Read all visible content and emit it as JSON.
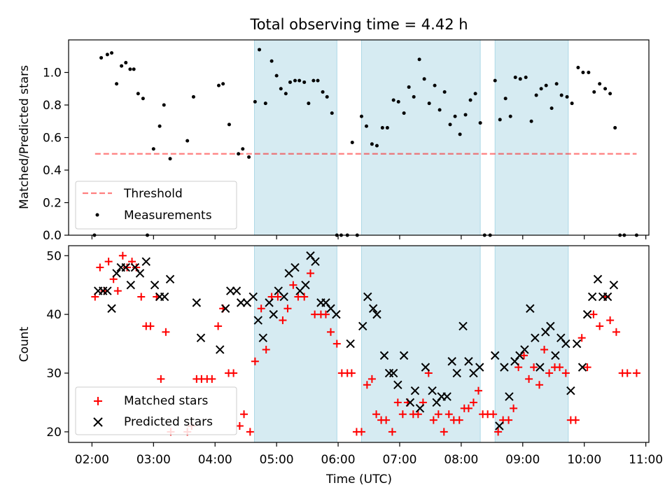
{
  "title": "Total observing time = 4.42 h",
  "colors": {
    "shade": "#add8e6",
    "threshold": "#ff0000",
    "matched": "#ff0000",
    "predicted": "#000000",
    "measure": "#000000"
  },
  "chart_data": [
    {
      "type": "scatter",
      "panel": "top",
      "ylabel": "Matched/Predicted stars",
      "xlim": [
        1.62,
        11.05
      ],
      "ylim": [
        0.0,
        1.2
      ],
      "yticks": [
        0.0,
        0.2,
        0.4,
        0.6,
        0.8,
        1.0
      ],
      "ytick_labels": [
        "0.0",
        "0.2",
        "0.4",
        "0.6",
        "0.8",
        "1.0"
      ],
      "shaded_intervals": [
        [
          4.64,
          5.98
        ],
        [
          6.38,
          8.31
        ],
        [
          8.55,
          9.74
        ]
      ],
      "threshold": {
        "name": "Threshold",
        "value": 0.5,
        "x_range": [
          2.05,
          10.85
        ]
      },
      "legend": {
        "location": "lower left",
        "entries": [
          "Threshold",
          "Measurements"
        ]
      },
      "series": [
        {
          "name": "Measurements",
          "x": [
            2.04,
            2.15,
            2.25,
            2.32,
            2.4,
            2.48,
            2.55,
            2.62,
            2.68,
            2.75,
            2.83,
            2.9,
            3.0,
            3.1,
            3.17,
            3.27,
            3.55,
            3.65,
            4.06,
            4.13,
            4.23,
            4.38,
            4.45,
            4.55,
            4.65,
            4.72,
            4.82,
            4.92,
            5.0,
            5.07,
            5.15,
            5.22,
            5.3,
            5.37,
            5.45,
            5.52,
            5.6,
            5.67,
            5.75,
            5.82,
            5.9,
            5.98,
            6.05,
            6.15,
            6.23,
            6.31,
            6.38,
            6.46,
            6.55,
            6.63,
            6.72,
            6.8,
            6.9,
            6.98,
            7.07,
            7.15,
            7.23,
            7.32,
            7.4,
            7.48,
            7.57,
            7.65,
            7.73,
            7.82,
            7.9,
            7.98,
            8.07,
            8.15,
            8.23,
            8.31,
            8.38,
            8.47,
            8.55,
            8.63,
            8.72,
            8.8,
            8.88,
            8.96,
            9.05,
            9.14,
            9.22,
            9.3,
            9.38,
            9.47,
            9.55,
            9.63,
            9.72,
            9.8,
            9.9,
            9.98,
            10.07,
            10.16,
            10.25,
            10.34,
            10.42,
            10.5,
            10.58,
            10.65,
            10.85
          ],
          "y": [
            0.0,
            1.09,
            1.11,
            1.12,
            0.93,
            1.04,
            1.06,
            1.02,
            1.02,
            0.87,
            0.84,
            0.0,
            0.53,
            0.67,
            0.8,
            0.47,
            0.58,
            0.85,
            0.92,
            0.93,
            0.68,
            0.5,
            0.53,
            0.48,
            0.82,
            1.14,
            0.81,
            1.07,
            0.98,
            0.9,
            0.87,
            0.94,
            0.95,
            0.95,
            0.94,
            0.81,
            0.95,
            0.95,
            0.88,
            0.85,
            0.75,
            0.0,
            0.0,
            0.0,
            0.57,
            0.0,
            0.73,
            0.67,
            0.56,
            0.55,
            0.66,
            0.66,
            0.83,
            0.82,
            0.75,
            0.91,
            0.85,
            1.08,
            0.96,
            0.81,
            0.92,
            0.77,
            0.88,
            0.68,
            0.73,
            0.62,
            0.74,
            0.83,
            0.87,
            0.69,
            0.0,
            0.0,
            0.95,
            0.71,
            0.84,
            0.73,
            0.97,
            0.96,
            0.97,
            0.7,
            0.86,
            0.9,
            0.92,
            0.78,
            0.93,
            0.86,
            0.85,
            0.81,
            1.03,
            1.0,
            1.0,
            0.88,
            0.93,
            0.9,
            0.87,
            0.66,
            0.0,
            0.0,
            0.0
          ]
        }
      ]
    },
    {
      "type": "scatter",
      "panel": "bottom",
      "xlabel": "Time (UTC)",
      "ylabel": "Count",
      "xlim": [
        1.62,
        11.05
      ],
      "ylim": [
        18.2,
        51.7
      ],
      "xticks": [
        2,
        3,
        4,
        5,
        6,
        7,
        8,
        9,
        10,
        11
      ],
      "xtick_labels": [
        "02:00",
        "03:00",
        "04:00",
        "05:00",
        "06:00",
        "07:00",
        "08:00",
        "09:00",
        "10:00",
        "11:00"
      ],
      "yticks": [
        20,
        30,
        40,
        50
      ],
      "ytick_labels": [
        "20",
        "30",
        "40",
        "50"
      ],
      "shaded_intervals": [
        [
          4.64,
          5.98
        ],
        [
          6.38,
          8.31
        ],
        [
          8.55,
          9.74
        ]
      ],
      "legend": {
        "location": "lower left",
        "entries": [
          "Matched stars",
          "Predicted stars"
        ]
      },
      "series": [
        {
          "name": "Matched stars",
          "marker": "plus",
          "x": [
            2.05,
            2.13,
            2.2,
            2.27,
            2.35,
            2.42,
            2.5,
            2.57,
            2.65,
            2.72,
            2.8,
            2.88,
            2.95,
            3.05,
            3.12,
            3.2,
            3.28,
            3.55,
            3.62,
            3.7,
            3.78,
            3.87,
            3.95,
            4.05,
            4.13,
            4.22,
            4.3,
            4.4,
            4.47,
            4.57,
            4.65,
            4.75,
            4.83,
            4.92,
            5.02,
            5.1,
            5.18,
            5.27,
            5.35,
            5.45,
            5.55,
            5.62,
            5.72,
            5.8,
            5.88,
            5.98,
            6.06,
            6.15,
            6.22,
            6.3,
            6.38,
            6.47,
            6.55,
            6.62,
            6.7,
            6.78,
            6.88,
            6.97,
            7.05,
            7.13,
            7.22,
            7.3,
            7.38,
            7.47,
            7.55,
            7.63,
            7.72,
            7.8,
            7.88,
            7.97,
            8.05,
            8.12,
            8.2,
            8.28,
            8.35,
            8.43,
            8.52,
            8.6,
            8.68,
            8.77,
            8.85,
            8.93,
            9.02,
            9.1,
            9.18,
            9.27,
            9.35,
            9.43,
            9.52,
            9.6,
            9.7,
            9.78,
            9.86,
            9.96,
            10.05,
            10.15,
            10.25,
            10.35,
            10.42,
            10.52,
            10.62,
            10.7,
            10.85
          ],
          "y": [
            43,
            48,
            44,
            49,
            46,
            44,
            50,
            48,
            49,
            48,
            43,
            38,
            38,
            43,
            29,
            37,
            20,
            20,
            21,
            29,
            29,
            29,
            29,
            38,
            41,
            30,
            30,
            21,
            23,
            20,
            32,
            41,
            34,
            43,
            43,
            39,
            41,
            45,
            43,
            43,
            47,
            40,
            40,
            40,
            37,
            35,
            30,
            30,
            30,
            20,
            20,
            28,
            29,
            23,
            22,
            22,
            20,
            25,
            23,
            25,
            23,
            23,
            25,
            30,
            22,
            23,
            20,
            23,
            22,
            22,
            24,
            24,
            25,
            27,
            23,
            23,
            23,
            20,
            22,
            22,
            24,
            31,
            33,
            29,
            31,
            28,
            34,
            30,
            31,
            31,
            30,
            22,
            22,
            36,
            31,
            40,
            38,
            43,
            39,
            37,
            30,
            30,
            30
          ]
        },
        {
          "name": "Predicted stars",
          "marker": "x",
          "x": [
            2.1,
            2.18,
            2.25,
            2.32,
            2.4,
            2.47,
            2.55,
            2.63,
            2.7,
            2.78,
            2.88,
            3.02,
            3.1,
            3.18,
            3.27,
            3.7,
            3.77,
            4.08,
            4.17,
            4.25,
            4.35,
            4.42,
            4.52,
            4.62,
            4.7,
            4.78,
            4.88,
            4.95,
            5.03,
            5.12,
            5.2,
            5.3,
            5.38,
            5.47,
            5.55,
            5.63,
            5.72,
            5.8,
            5.88,
            5.97,
            6.2,
            6.4,
            6.48,
            6.57,
            6.63,
            6.75,
            6.83,
            6.9,
            6.97,
            7.07,
            7.17,
            7.25,
            7.33,
            7.42,
            7.53,
            7.6,
            7.68,
            7.77,
            7.85,
            7.93,
            8.03,
            8.12,
            8.2,
            8.3,
            8.55,
            8.62,
            8.7,
            8.78,
            8.87,
            8.95,
            9.03,
            9.12,
            9.2,
            9.28,
            9.37,
            9.45,
            9.53,
            9.62,
            9.7,
            9.78,
            9.88,
            9.97,
            10.05,
            10.13,
            10.22,
            10.3,
            10.38,
            10.48
          ],
          "y": [
            44,
            44,
            44,
            41,
            47,
            48,
            48,
            45,
            48,
            47,
            49,
            45,
            43,
            43,
            46,
            42,
            36,
            34,
            41,
            44,
            44,
            42,
            42,
            43,
            39,
            36,
            42,
            40,
            44,
            43,
            47,
            48,
            44,
            45,
            50,
            49,
            42,
            42,
            41,
            40,
            35,
            38,
            43,
            41,
            40,
            33,
            30,
            30,
            28,
            33,
            25,
            27,
            24,
            31,
            27,
            25,
            26,
            26,
            32,
            30,
            38,
            32,
            30,
            31,
            33,
            21,
            31,
            26,
            32,
            33,
            34,
            41,
            36,
            31,
            37,
            38,
            33,
            36,
            35,
            27,
            35,
            31,
            40,
            43,
            46,
            43,
            43,
            45
          ]
        }
      ]
    }
  ]
}
